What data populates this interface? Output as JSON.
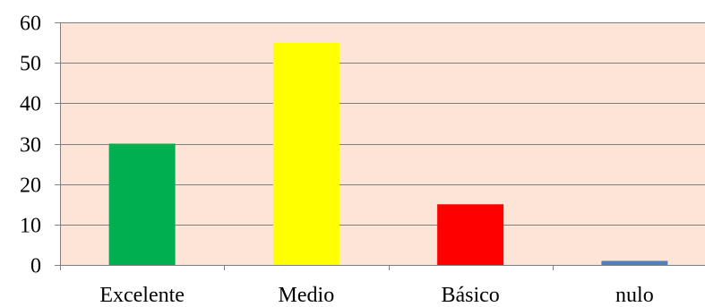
{
  "chart_data": {
    "type": "bar",
    "categories": [
      "Excelente",
      "Medio",
      "Básico",
      "nulo"
    ],
    "values": [
      30,
      55,
      15,
      1
    ],
    "ylim": [
      0,
      60
    ],
    "yticks": [
      0,
      10,
      20,
      30,
      40,
      50,
      60
    ],
    "ytick_labels": [
      "0",
      "10",
      "20",
      "30",
      "40",
      "50",
      "60"
    ],
    "grid": true,
    "legend": "none",
    "colors": {
      "plot_background": "#FCE4D6",
      "gridline": "#7f7f7f",
      "axis": "#7f7f7f",
      "bars": [
        "#00B050",
        "#FFFF00",
        "#FF0000",
        "#4F81BD"
      ]
    }
  }
}
